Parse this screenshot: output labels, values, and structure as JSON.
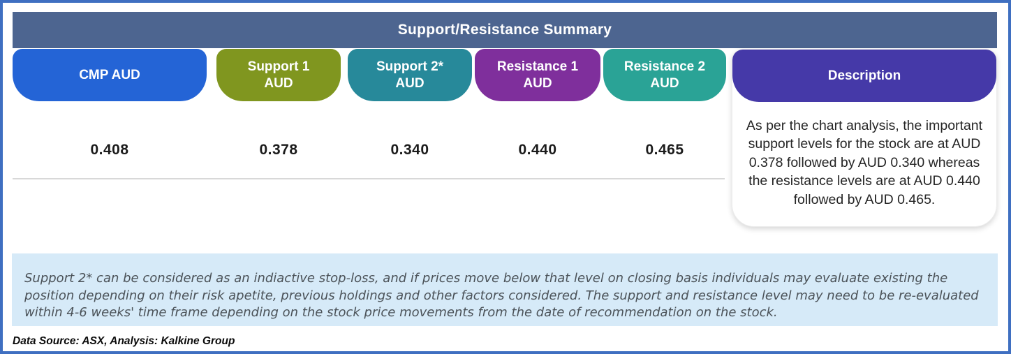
{
  "title": "Support/Resistance Summary",
  "columns": [
    {
      "label": "CMP AUD",
      "label_line1": "CMP AUD",
      "label_line2": "",
      "value": "0.408",
      "color": "#2464d6"
    },
    {
      "label": "Support 1 AUD",
      "label_line1": "Support 1",
      "label_line2": "AUD",
      "value": "0.378",
      "color": "#80961f"
    },
    {
      "label": "Support 2* AUD",
      "label_line1": "Support 2*",
      "label_line2": "AUD",
      "value": "0.340",
      "color": "#27899a"
    },
    {
      "label": "Resistance 1 AUD",
      "label_line1": "Resistance 1",
      "label_line2": "AUD",
      "value": "0.440",
      "color": "#7f2f9c"
    },
    {
      "label": "Resistance 2 AUD",
      "label_line1": "Resistance 2",
      "label_line2": "AUD",
      "value": "0.465",
      "color": "#2aa396"
    }
  ],
  "description": {
    "header": "Description",
    "header_color": "#4539a8",
    "text": "As per the chart analysis, the important support levels for the stock are at AUD 0.378 followed by AUD 0.340 whereas the resistance levels are at AUD 0.440 followed by AUD 0.465."
  },
  "footnote": "Support 2* can be considered as an indiactive stop-loss, and if prices move below that level on closing basis individuals may evaluate existing the position depending on their risk apetite, previous holdings and other factors considered. The support and resistance level may need to be re-evaluated within 4-6 weeks' time frame depending on the stock price movements from  the date of recommendation on the stock.",
  "data_source": "Data Source: ASX, Analysis: Kalkine Group",
  "colors": {
    "title_bar": "#4d6590",
    "footnote_bg": "#d6eaf8",
    "frame_border": "#3f6fc1"
  }
}
